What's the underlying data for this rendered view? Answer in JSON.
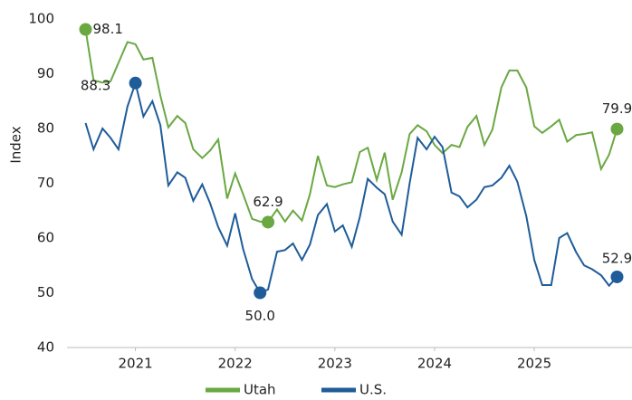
{
  "chart_data": {
    "type": "line",
    "y_label": "Index",
    "x": [
      2020.5,
      2020.58,
      2020.67,
      2020.75,
      2020.83,
      2020.92,
      2021,
      2021.08,
      2021.17,
      2021.25,
      2021.33,
      2021.42,
      2021.5,
      2021.58,
      2021.67,
      2021.75,
      2021.83,
      2021.92,
      2022,
      2022.08,
      2022.17,
      2022.25,
      2022.33,
      2022.42,
      2022.5,
      2022.58,
      2022.67,
      2022.75,
      2022.83,
      2022.92,
      2023,
      2023.08,
      2023.17,
      2023.25,
      2023.33,
      2023.42,
      2023.5,
      2023.58,
      2023.67,
      2023.75,
      2023.83,
      2023.92,
      2024,
      2024.08,
      2024.17,
      2024.25,
      2024.33,
      2024.42,
      2024.5,
      2024.58,
      2024.67,
      2024.75,
      2024.83,
      2024.92,
      2025,
      2025.08,
      2025.17,
      2025.25,
      2025.33,
      2025.42,
      2025.5,
      2025.58,
      2025.67,
      2025.75,
      2025.83
    ],
    "series": [
      {
        "name": "Utah",
        "color": "#6aa842",
        "values": [
          98.1,
          88.8,
          88.4,
          88.6,
          92.0,
          95.8,
          95.4,
          92.6,
          92.9,
          86.0,
          80.2,
          82.3,
          81.0,
          76.2,
          74.6,
          76.0,
          78.0,
          67.2,
          71.8,
          68.0,
          63.5,
          63.0,
          62.9,
          65.2,
          63.0,
          65.0,
          63.2,
          68.0,
          75.0,
          69.6,
          69.3,
          69.8,
          70.2,
          75.7,
          76.5,
          70.6,
          75.6,
          67.0,
          72.0,
          79.0,
          80.6,
          79.5,
          77.0,
          75.5,
          77.0,
          76.6,
          80.3,
          82.3,
          77.0,
          79.8,
          87.5,
          90.6,
          90.6,
          87.5,
          80.4,
          79.2,
          80.4,
          81.6,
          77.6,
          78.8,
          79.0,
          79.3,
          72.6,
          75.2,
          79.9
        ],
        "value_labels": [
          "98.1",
          null,
          null,
          null,
          null,
          null,
          null,
          null,
          null,
          null,
          null,
          null,
          null,
          null,
          null,
          null,
          null,
          null,
          null,
          null,
          null,
          null,
          "62.9",
          null,
          null,
          null,
          null,
          null,
          null,
          null,
          null,
          null,
          null,
          null,
          null,
          null,
          null,
          null,
          null,
          null,
          null,
          null,
          null,
          null,
          null,
          null,
          null,
          null,
          null,
          null,
          null,
          null,
          null,
          null,
          null,
          null,
          null,
          null,
          null,
          null,
          null,
          null,
          null,
          null,
          "79.9"
        ]
      },
      {
        "name": "U.S.",
        "color": "#1f5c99",
        "values": [
          81.0,
          76.2,
          80.0,
          78.3,
          76.2,
          84.0,
          88.3,
          82.2,
          85.0,
          80.6,
          69.6,
          72.0,
          71.0,
          66.8,
          69.8,
          66.3,
          62.0,
          58.6,
          64.5,
          58.0,
          52.5,
          50.0,
          50.6,
          57.5,
          57.8,
          59.0,
          56.0,
          58.8,
          64.2,
          66.2,
          61.2,
          62.3,
          58.4,
          63.8,
          70.8,
          69.2,
          68.0,
          63.0,
          60.6,
          70.0,
          78.3,
          76.2,
          78.5,
          76.6,
          68.3,
          67.6,
          65.6,
          67.0,
          69.3,
          69.6,
          71.0,
          73.2,
          70.3,
          64.0,
          56.0,
          51.4,
          51.4,
          60.0,
          60.9,
          57.4,
          55.0,
          54.3,
          53.2,
          51.3,
          52.9
        ],
        "value_labels": [
          null,
          null,
          null,
          null,
          null,
          null,
          "88.3",
          null,
          null,
          null,
          null,
          null,
          null,
          null,
          null,
          null,
          null,
          null,
          null,
          null,
          null,
          "50.0",
          null,
          null,
          null,
          null,
          null,
          null,
          null,
          null,
          null,
          null,
          null,
          null,
          null,
          null,
          null,
          null,
          null,
          null,
          null,
          null,
          null,
          null,
          null,
          null,
          null,
          null,
          null,
          null,
          null,
          null,
          null,
          null,
          null,
          null,
          null,
          null,
          null,
          null,
          null,
          null,
          null,
          null,
          "52.9"
        ]
      }
    ],
    "xlim": [
      2020.35,
      2025.98
    ],
    "xticks": [
      2021,
      2022,
      2023,
      2024,
      2025
    ],
    "ylim": [
      40,
      100
    ],
    "yticks": [
      40,
      50,
      60,
      70,
      80,
      90,
      100
    ]
  }
}
